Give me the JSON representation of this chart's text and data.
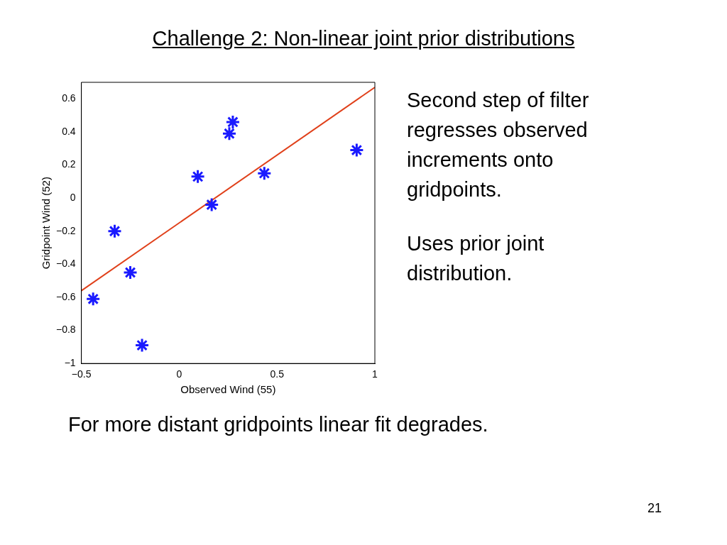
{
  "chart_data": {
    "type": "scatter",
    "title": "Challenge 2: Non-linear joint prior distributions",
    "xlabel": "Observed Wind (55)",
    "ylabel": "Gridpoint Wind (52)",
    "series": [
      {
        "marker": "cross",
        "color": "#1a1aff",
        "x": [
          -0.44,
          -0.33,
          -0.25,
          -0.19,
          0.095,
          0.166,
          0.256,
          0.274,
          0.435,
          0.907
        ],
        "values": [
          -0.61,
          -0.2,
          -0.45,
          -0.89,
          0.13,
          -0.04,
          0.39,
          0.46,
          0.15,
          0.29
        ]
      },
      {
        "type": "line",
        "marker": "none",
        "color": "#e0401a",
        "x": [
          -0.5,
          1
        ],
        "values": [
          -0.56,
          0.67
        ]
      }
    ],
    "xlim": [
      -0.5,
      1
    ],
    "xticks": [
      {
        "value": -0.5,
        "label": "−0.5"
      },
      0,
      0.5,
      1
    ],
    "ylim": [
      -1,
      0.7
    ],
    "yticks": [
      {
        "value": -1,
        "label": "−1"
      },
      {
        "value": -0.8,
        "label": "−0.8"
      },
      {
        "value": -0.6,
        "label": "−0.6"
      },
      {
        "value": -0.4,
        "label": "−0.4"
      },
      {
        "value": -0.2,
        "label": "−0.2"
      },
      0,
      0.2,
      0.4,
      0.6
    ],
    "grid": false,
    "legend": false,
    "annotations": [
      "Second step of filter regresses observed increments onto gridpoints.",
      "Uses prior joint distribution.",
      "For more distant gridpoints linear fit degrades.",
      "21"
    ]
  }
}
